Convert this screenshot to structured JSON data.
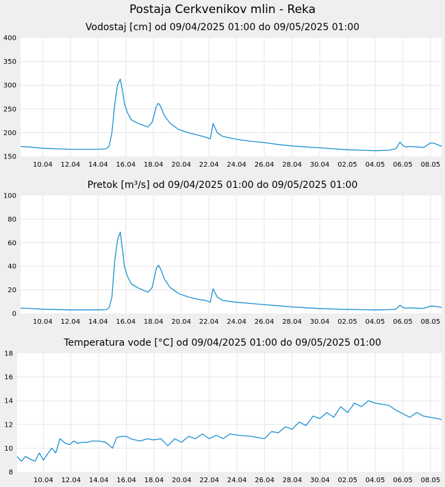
{
  "page_title": "Postaja Cerkvenikov mlin - Reka",
  "colors": {
    "background": "#efefef",
    "plot_area": "#ffffff",
    "grid": "#e6e6e6",
    "series": "#1a8fd2"
  },
  "chart_data": [
    {
      "type": "line",
      "title": "Vodostaj [cm] od 09/04/2025 01:00 do 09/05/2025 01:00",
      "ylim": [
        150,
        400
      ],
      "y_ticks": [
        "150",
        "200",
        "250",
        "300",
        "350",
        "400"
      ],
      "x_ticks": [
        "10.04",
        "12.04",
        "14.04",
        "16.04",
        "18.04",
        "20.04",
        "22.04",
        "24.04",
        "26.04",
        "28.04",
        "30.04",
        "02.05",
        "04.05",
        "06.05",
        "08.05"
      ],
      "xlim_days": [
        -0.6,
        29.8
      ],
      "grid": true,
      "series": [
        {
          "x": [
            -0.6,
            0,
            1,
            2,
            3,
            4,
            5,
            5.6,
            5.8,
            6.0,
            6.2,
            6.4,
            6.6,
            6.75,
            6.9,
            7.1,
            7.4,
            8,
            8.6,
            8.9,
            9.2,
            9.35,
            9.5,
            9.8,
            10.2,
            10.8,
            11.5,
            12.2,
            12.8,
            13.0,
            13.1,
            13.3,
            13.6,
            14,
            15,
            16,
            17,
            18,
            19,
            20,
            21,
            22,
            23,
            24,
            25,
            26,
            26.5,
            26.8,
            27.0,
            27.2,
            27.5,
            28,
            28.5,
            29,
            29.2,
            29.5,
            29.8
          ],
          "y": [
            171,
            170,
            167,
            166,
            165,
            165,
            165,
            166,
            172,
            200,
            260,
            300,
            313,
            290,
            262,
            243,
            227,
            218,
            212,
            222,
            255,
            262,
            256,
            235,
            220,
            207,
            200,
            195,
            190,
            188,
            187,
            219,
            200,
            192,
            186,
            182,
            179,
            175,
            172,
            170,
            168,
            166,
            164,
            163,
            162,
            163,
            166,
            180,
            173,
            170,
            171,
            170,
            169,
            178,
            178,
            175,
            171
          ]
        }
      ]
    },
    {
      "type": "line",
      "title": "Pretok [m³/s] od 09/04/2025 01:00 do 09/05/2025 01:00",
      "ylim": [
        0,
        100
      ],
      "y_ticks": [
        "0",
        "20",
        "40",
        "60",
        "80",
        "100"
      ],
      "x_ticks": [
        "10.04",
        "12.04",
        "14.04",
        "16.04",
        "18.04",
        "20.04",
        "22.04",
        "24.04",
        "26.04",
        "28.04",
        "30.04",
        "02.05",
        "04.05",
        "06.05",
        "08.05"
      ],
      "xlim_days": [
        -0.6,
        29.8
      ],
      "grid": true,
      "series": [
        {
          "x": [
            -0.6,
            0,
            1,
            2,
            3,
            4,
            5,
            5.6,
            5.8,
            6.0,
            6.2,
            6.4,
            6.6,
            6.75,
            6.9,
            7.1,
            7.4,
            8,
            8.6,
            8.9,
            9.2,
            9.35,
            9.5,
            9.8,
            10.2,
            10.8,
            11.5,
            12.2,
            12.8,
            13.0,
            13.1,
            13.3,
            13.6,
            14,
            15,
            16,
            17,
            18,
            19,
            20,
            21,
            22,
            23,
            24,
            25,
            26,
            26.5,
            26.8,
            27.0,
            27.2,
            27.5,
            28,
            28.5,
            29,
            29.2,
            29.5,
            29.8
          ],
          "y": [
            4.5,
            4.3,
            3.6,
            3.3,
            3.0,
            3.0,
            3.0,
            3.2,
            5,
            14,
            45,
            62,
            69,
            55,
            40,
            32,
            25,
            21,
            18,
            22,
            38,
            41,
            38,
            29,
            22,
            17,
            14,
            12,
            11,
            10,
            9.5,
            21,
            14,
            11,
            9.5,
            8.5,
            7.5,
            6.5,
            5.5,
            4.8,
            4.2,
            3.8,
            3.4,
            3.2,
            3.0,
            3.2,
            3.6,
            7,
            5,
            4.5,
            4.7,
            4.5,
            4.3,
            6.2,
            6.2,
            5.8,
            5.0
          ]
        }
      ]
    },
    {
      "type": "line",
      "title": "Temperatura vode [°C] od 09/04/2025 01:00 do 09/05/2025 01:00",
      "ylim": [
        8,
        18
      ],
      "y_ticks": [
        "8",
        "10",
        "12",
        "14",
        "16",
        "18"
      ],
      "x_ticks": [
        "10.04",
        "12.04",
        "14.04",
        "16.04",
        "18.04",
        "20.04",
        "22.04",
        "24.04",
        "26.04",
        "28.04",
        "30.04",
        "02.05",
        "04.05",
        "06.05",
        "08.05"
      ],
      "xlim_days": [
        -0.9,
        29.8
      ],
      "grid": true,
      "series": [
        {
          "x": [
            -0.9,
            -0.6,
            -0.3,
            0.0,
            0.4,
            0.7,
            1.0,
            1.3,
            1.6,
            1.9,
            2.2,
            2.6,
            2.9,
            3.2,
            3.5,
            3.8,
            4.2,
            4.5,
            5.0,
            5.5,
            6.0,
            6.3,
            6.7,
            7.0,
            7.3,
            8.0,
            8.5,
            9.0,
            9.5,
            10.0,
            10.5,
            11.0,
            11.5,
            12.0,
            12.5,
            13.0,
            13.5,
            14.0,
            14.5,
            15.0,
            16.0,
            17.0,
            17.5,
            18.0,
            18.5,
            19.0,
            19.5,
            20.0,
            20.5,
            21.0,
            21.5,
            22.0,
            22.5,
            23.0,
            23.5,
            24.0,
            24.5,
            25.0,
            25.5,
            26.0,
            26.5,
            27.0,
            27.5,
            28.0,
            28.5,
            29.0,
            29.5,
            29.8
          ],
          "y": [
            9.3,
            8.9,
            9.3,
            9.1,
            8.9,
            9.6,
            9.0,
            9.5,
            10.0,
            9.6,
            10.8,
            10.4,
            10.3,
            10.6,
            10.4,
            10.5,
            10.5,
            10.6,
            10.6,
            10.5,
            10.0,
            10.9,
            11.0,
            11.0,
            10.8,
            10.6,
            10.8,
            10.7,
            10.8,
            10.2,
            10.8,
            10.5,
            11.0,
            10.8,
            11.2,
            10.8,
            11.1,
            10.8,
            11.2,
            11.1,
            11.0,
            10.8,
            11.4,
            11.3,
            11.8,
            11.6,
            12.2,
            11.9,
            12.7,
            12.5,
            13.0,
            12.6,
            13.5,
            13.0,
            13.8,
            13.5,
            14.0,
            13.8,
            13.7,
            13.6,
            13.2,
            12.9,
            12.6,
            13.0,
            12.7,
            12.6,
            12.5,
            12.4
          ]
        }
      ]
    }
  ]
}
